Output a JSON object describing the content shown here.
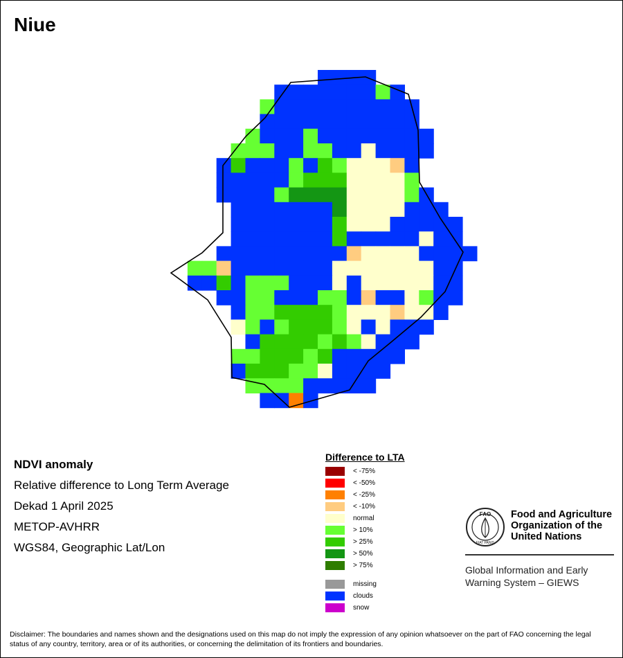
{
  "title": "Niue",
  "info": {
    "line1": "NDVI anomaly",
    "line2": "Relative difference to Long Term Average",
    "line3": "Dekad 1 April 2025",
    "line4": "METOP-AVHRR",
    "line5": "WGS84, Geographic Lat/Lon"
  },
  "legend": {
    "title": "Difference to LTA",
    "classes": [
      {
        "label": "< -75%",
        "color": "#990000"
      },
      {
        "label": "< -50%",
        "color": "#ff0000"
      },
      {
        "label": "< -25%",
        "color": "#ff8000"
      },
      {
        "label": "< -10%",
        "color": "#ffcc80"
      },
      {
        "label": "normal",
        "color": "#ffffcc"
      },
      {
        "label": "> 10%",
        "color": "#66ff33"
      },
      {
        "label": "> 25%",
        "color": "#33cc00"
      },
      {
        "label": "> 50%",
        "color": "#149614"
      },
      {
        "label": "> 75%",
        "color": "#2e7d00"
      }
    ],
    "extra": [
      {
        "label": "missing",
        "color": "#999999"
      },
      {
        "label": "clouds",
        "color": "#0033ff"
      },
      {
        "label": "snow",
        "color": "#cc00cc"
      }
    ]
  },
  "fao": {
    "name": "Food and Agriculture\nOrganization of the\nUnited Nations",
    "logo_letters": "FAO",
    "logo_motto": "FIAT PANIS",
    "system": "Global Information and Early\nWarning System – GIEWS"
  },
  "disclaimer": "Disclaimer: The boundaries and names shown and the designations used on this map do not imply the expression of any opinion whatsoever on the part of FAO concerning the legal status of any country, territory, area or of its authorities, or concerning the delimitation of its frontiers and boundaries.",
  "map_grid": {
    "palette": {
      "B": "#0033ff",
      "G": "#66ff33",
      "M": "#33cc00",
      "D": "#149614",
      "N": "#ffffcc",
      "T": "#ffcc80",
      "O": "#ff8000"
    },
    "rows": [
      "..........BBBB...........",
      ".......BBBBBBBGB.........",
      "......GBBBBBBBBBB........",
      "......BBBBBBBBBBB........",
      ".....GBBBGBBBBBBBB.......",
      "....GGGBBGGBBNBBBB.......",
      "...BMBBBGBMGNNNTB........",
      "...BBBBBGMMMNNNNG........",
      "...BBBBGDDDDNNNNGB.......",
      "....BBBBBBBDNNNNBBB......",
      "....BBBBBBBMNNNBBBBB.....",
      "....BBBBBBBMBBBBBNBB.....",
      "...BBBBBBBBBTNNNNBBBB....",
      ".GGTBBBBBBBNNNNNNNBB.....",
      ".BBMBGGGBBBNBNNNNNBB.....",
      "...BBGGBBBGGBTBBNGBB.....",
      "....BGGMMMMGNNNTNNB......",
      "....NGBGMMMGNBNBBB.......",
      ".....BMMMMGMGNBBB........",
      "....GGMMMGMBBBBB.........",
      "....BMMMGGNBBBB..........",
      ".....GGGGBBBBB...........",
      "......BBOB..............."
    ]
  }
}
